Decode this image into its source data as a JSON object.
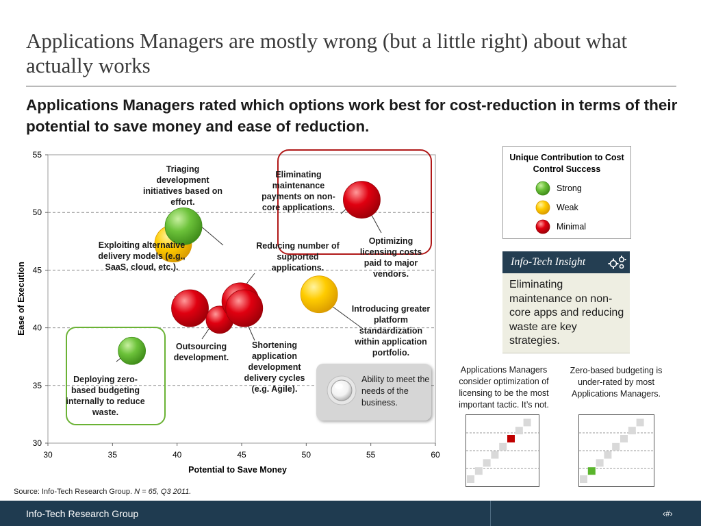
{
  "title": "Applications Managers are mostly wrong (but a little right) about what actually works",
  "subtitle": "Applications Managers rated which options work best for cost-reduction in terms of their potential to save money and ease of reduction.",
  "colors": {
    "strong": "#5ab52c",
    "weak": "#f5c400",
    "minimal": "#d9000d",
    "red_highlight": "#b01818",
    "green_highlight": "#6ab234",
    "insight_header": "#243e52",
    "footer": "#1f3b50"
  },
  "chart_data": {
    "type": "scatter",
    "xlabel": "Potential to Save Money",
    "ylabel": "Ease of Execution",
    "xlim": [
      30,
      60
    ],
    "ylim": [
      30,
      55
    ],
    "xticks": [
      "30",
      "35",
      "40",
      "45",
      "50",
      "55",
      "60"
    ],
    "yticks": [
      "30",
      "35",
      "40",
      "45",
      "50",
      "55"
    ],
    "grid": "horizontal dashed",
    "points": [
      {
        "x": 39.7,
        "y": 47.3,
        "size": "medium",
        "category": "Weak"
      },
      {
        "x": 40.5,
        "y": 48.8,
        "size": "medium",
        "category": "Strong"
      },
      {
        "x": 54.3,
        "y": 51.1,
        "size": "medium",
        "category": "Minimal"
      },
      {
        "x": 41.0,
        "y": 41.7,
        "size": "medium",
        "category": "Minimal"
      },
      {
        "x": 43.3,
        "y": 40.7,
        "size": "small",
        "category": "Minimal"
      },
      {
        "x": 44.9,
        "y": 42.3,
        "size": "medium",
        "category": "Minimal"
      },
      {
        "x": 45.2,
        "y": 41.7,
        "size": "medium",
        "category": "Minimal"
      },
      {
        "x": 51.0,
        "y": 42.9,
        "size": "medium",
        "category": "Weak"
      },
      {
        "x": 36.5,
        "y": 38.0,
        "size": "small",
        "category": "Strong"
      }
    ],
    "annotations": [
      "Triaging development initiatives based on effort.",
      "Eliminating maintenance payments on non-core applications.",
      "Optimizing licensing costs paid to major vendors.",
      "Exploiting alternative delivery models (e.g., SaaS, cloud, etc.).",
      "Reducing number of supported applications.",
      "Introducing greater platform standardization within application portfolio.",
      "Outsourcing development.",
      "Shortening application development delivery cycles (e.g. Agile).",
      "Deploying zero-based budgeting internally to reduce waste."
    ]
  },
  "legend": {
    "title": "Unique Contribution to Cost Control Success",
    "items": [
      "Strong",
      "Weak",
      "Minimal"
    ]
  },
  "ability_note": "Ability to meet the needs of the business.",
  "insight": {
    "title": "Info-Tech Insight",
    "text": "Eliminating maintenance on non-core apps and reducing waste are key strategies."
  },
  "mini_charts": [
    {
      "caption": "Applications Managers consider optimization of licensing to be the most important tactic. It’s not.",
      "highlight_step": 5,
      "highlight_color": "#c00000"
    },
    {
      "caption": "Zero-based budgeting is under-rated by most Applications Managers.",
      "highlight_step": 1,
      "highlight_color": "#5ab52c"
    }
  ],
  "source": {
    "prefix": "Source: Info-Tech Research Group. ",
    "detail": "N = 65, Q3 2011."
  },
  "footer": {
    "org": "Info-Tech Research Group",
    "page": "‹#›"
  }
}
